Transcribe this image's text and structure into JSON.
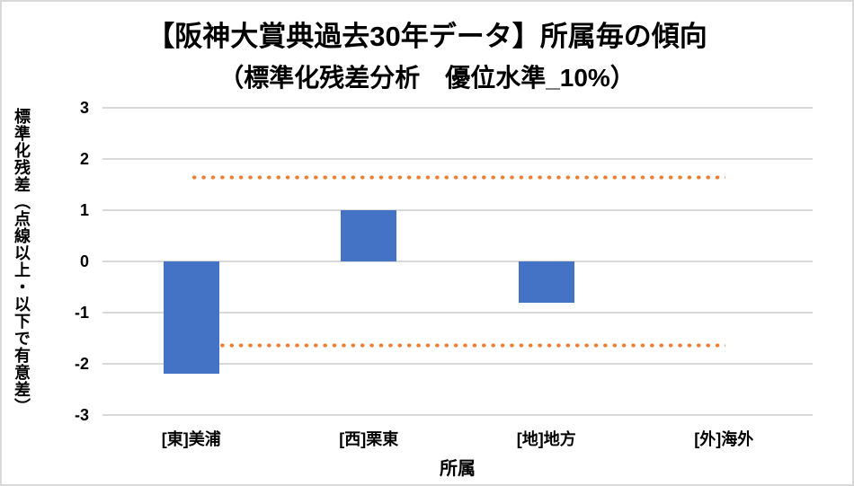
{
  "chart_data": {
    "type": "bar",
    "title": "【阪神大賞典過去30年データ】所属毎の傾向",
    "subtitle": "（標準化残差分析　優位水準_10%）",
    "categories": [
      "[東]美浦",
      "[西]栗東",
      "[地]地方",
      "[外]海外"
    ],
    "values": [
      -2.2,
      1.0,
      -0.8,
      0
    ],
    "series_name": "標準化残差",
    "xlabel": "所属",
    "ylabel": "標準化残差",
    "ylabel_note": "（点線以上・以下で有意差）",
    "ylim": [
      -3,
      3
    ],
    "yticks": [
      3,
      2,
      1,
      0,
      -1,
      -2,
      -3
    ],
    "threshold_upper": 1.645,
    "threshold_lower": -1.645,
    "grid": true,
    "legend": "none",
    "colors": {
      "bar": "#4472C4",
      "threshold": "#ED7D31",
      "gridline": "#D9D9D9",
      "text": "#000000",
      "border": "#D9D9D9",
      "background": "#FFFFFF"
    }
  }
}
